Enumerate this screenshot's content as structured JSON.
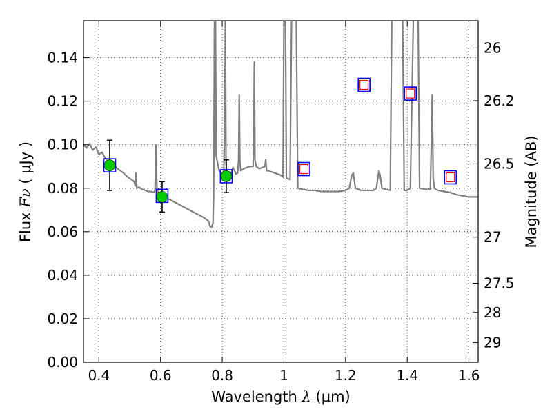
{
  "chart_data": {
    "type": "line",
    "xlabel_text": "Wavelength",
    "xlabel_symbol": "λ",
    "xlabel_unit": "(μm)",
    "ylabel_text": "Flux",
    "ylabel_symbol": "Fν",
    "ylabel_unit": "( μJy )",
    "y2label": "Magnitude (AB)",
    "xlim": [
      0.35,
      1.63
    ],
    "ylim": [
      0.0,
      0.157
    ],
    "grid": true,
    "x_ticks": [
      0.4,
      0.6,
      0.8,
      1.0,
      1.2,
      1.4,
      1.6
    ],
    "x_tick_labels": [
      "0.4",
      "0.6",
      "0.8",
      "1",
      "1.2",
      "1.4",
      "1.6"
    ],
    "y_ticks": [
      0.0,
      0.02,
      0.04,
      0.06,
      0.08,
      0.1,
      0.12,
      0.14
    ],
    "y_tick_labels": [
      "0.00",
      "0.02",
      "0.04",
      "0.06",
      "0.08",
      "0.10",
      "0.12",
      "0.14"
    ],
    "y2_ticks": [
      {
        "flux": 0.1445,
        "label": "26"
      },
      {
        "flux": 0.1202,
        "label": "26.2"
      },
      {
        "flux": 0.0912,
        "label": "26.5"
      },
      {
        "flux": 0.0575,
        "label": "27"
      },
      {
        "flux": 0.0363,
        "label": "27.5"
      },
      {
        "flux": 0.0229,
        "label": "28"
      },
      {
        "flux": 0.0091,
        "label": "29"
      }
    ],
    "series": [
      {
        "kind": "sed_model",
        "color": "#808080",
        "points": [
          [
            0.35,
            0.1
          ],
          [
            0.36,
            0.0985
          ],
          [
            0.37,
            0.1005
          ],
          [
            0.38,
            0.0975
          ],
          [
            0.39,
            0.099
          ],
          [
            0.4,
            0.0955
          ],
          [
            0.41,
            0.0965
          ],
          [
            0.42,
            0.094
          ],
          [
            0.43,
            0.0925
          ],
          [
            0.44,
            0.0915
          ],
          [
            0.45,
            0.0905
          ],
          [
            0.46,
            0.089
          ],
          [
            0.47,
            0.088
          ],
          [
            0.48,
            0.087
          ],
          [
            0.49,
            0.0855
          ],
          [
            0.5,
            0.0845
          ],
          [
            0.51,
            0.0835
          ],
          [
            0.515,
            0.0828
          ],
          [
            0.518,
            0.081
          ],
          [
            0.52,
            0.087
          ],
          [
            0.523,
            0.08
          ],
          [
            0.53,
            0.0805
          ],
          [
            0.54,
            0.0795
          ],
          [
            0.55,
            0.079
          ],
          [
            0.56,
            0.0785
          ],
          [
            0.57,
            0.0785
          ],
          [
            0.578,
            0.078
          ],
          [
            0.582,
            0.079
          ],
          [
            0.585,
            0.1
          ],
          [
            0.588,
            0.08
          ],
          [
            0.592,
            0.0782
          ],
          [
            0.6,
            0.0775
          ],
          [
            0.61,
            0.0765
          ],
          [
            0.62,
            0.0755
          ],
          [
            0.64,
            0.074
          ],
          [
            0.66,
            0.0725
          ],
          [
            0.68,
            0.071
          ],
          [
            0.7,
            0.0695
          ],
          [
            0.72,
            0.068
          ],
          [
            0.74,
            0.0665
          ],
          [
            0.755,
            0.065
          ],
          [
            0.76,
            0.0625
          ],
          [
            0.765,
            0.062
          ],
          [
            0.77,
            0.064
          ],
          [
            0.772,
            0.076
          ],
          [
            0.775,
            0.16
          ],
          [
            0.778,
            0.16
          ],
          [
            0.78,
            0.095
          ],
          [
            0.79,
            0.088
          ],
          [
            0.8,
            0.086
          ],
          [
            0.805,
            0.088
          ],
          [
            0.808,
            0.11
          ],
          [
            0.81,
            0.16
          ],
          [
            0.812,
            0.092
          ],
          [
            0.815,
            0.086
          ],
          [
            0.82,
            0.085
          ],
          [
            0.83,
            0.0875
          ],
          [
            0.835,
            0.0895
          ],
          [
            0.84,
            0.088
          ],
          [
            0.845,
            0.0865
          ],
          [
            0.85,
            0.087
          ],
          [
            0.853,
            0.093
          ],
          [
            0.855,
            0.123
          ],
          [
            0.857,
            0.093
          ],
          [
            0.86,
            0.088
          ],
          [
            0.87,
            0.089
          ],
          [
            0.88,
            0.0895
          ],
          [
            0.89,
            0.09
          ],
          [
            0.9,
            0.09
          ],
          [
            0.902,
            0.1
          ],
          [
            0.904,
            0.138
          ],
          [
            0.906,
            0.093
          ],
          [
            0.91,
            0.09
          ],
          [
            0.92,
            0.089
          ],
          [
            0.93,
            0.0895
          ],
          [
            0.938,
            0.09
          ],
          [
            0.941,
            0.093
          ],
          [
            0.944,
            0.088
          ],
          [
            0.95,
            0.088
          ],
          [
            0.96,
            0.0875
          ],
          [
            0.97,
            0.087
          ],
          [
            0.98,
            0.0865
          ],
          [
            0.99,
            0.086
          ],
          [
            0.997,
            0.085
          ],
          [
            1.0,
            0.16
          ],
          [
            1.005,
            0.16
          ],
          [
            1.008,
            0.085
          ],
          [
            1.01,
            0.0845
          ],
          [
            1.02,
            0.084
          ],
          [
            1.025,
            0.16
          ],
          [
            1.04,
            0.16
          ],
          [
            1.045,
            0.08
          ],
          [
            1.06,
            0.0795
          ],
          [
            1.08,
            0.079
          ],
          [
            1.1,
            0.079
          ],
          [
            1.12,
            0.0785
          ],
          [
            1.14,
            0.0785
          ],
          [
            1.16,
            0.0785
          ],
          [
            1.18,
            0.0785
          ],
          [
            1.2,
            0.079
          ],
          [
            1.212,
            0.08
          ],
          [
            1.22,
            0.086
          ],
          [
            1.225,
            0.087
          ],
          [
            1.232,
            0.08
          ],
          [
            1.25,
            0.079
          ],
          [
            1.27,
            0.079
          ],
          [
            1.29,
            0.079
          ],
          [
            1.3,
            0.08
          ],
          [
            1.308,
            0.088
          ],
          [
            1.312,
            0.086
          ],
          [
            1.318,
            0.08
          ],
          [
            1.33,
            0.0795
          ],
          [
            1.345,
            0.079
          ],
          [
            1.35,
            0.16
          ],
          [
            1.385,
            0.16
          ],
          [
            1.39,
            0.079
          ],
          [
            1.4,
            0.079
          ],
          [
            1.41,
            0.08
          ],
          [
            1.42,
            0.16
          ],
          [
            1.435,
            0.16
          ],
          [
            1.44,
            0.08
          ],
          [
            1.46,
            0.0795
          ],
          [
            1.475,
            0.0795
          ],
          [
            1.478,
            0.1
          ],
          [
            1.481,
            0.123
          ],
          [
            1.484,
            0.085
          ],
          [
            1.488,
            0.08
          ],
          [
            1.5,
            0.079
          ],
          [
            1.52,
            0.0785
          ],
          [
            1.54,
            0.078
          ],
          [
            1.56,
            0.077
          ],
          [
            1.58,
            0.0765
          ],
          [
            1.6,
            0.076
          ],
          [
            1.63,
            0.076
          ]
        ]
      },
      {
        "kind": "model_photometry",
        "marker": "square",
        "edge": "#0000ff",
        "points": [
          [
            0.435,
            0.0905
          ],
          [
            0.605,
            0.0765
          ],
          [
            0.813,
            0.0855
          ],
          [
            1.065,
            0.0888
          ],
          [
            1.26,
            0.1275
          ],
          [
            1.41,
            0.1235
          ],
          [
            1.54,
            0.085
          ]
        ]
      },
      {
        "kind": "upper_limits",
        "marker": "square-open",
        "edge": "#ff0000",
        "points": [
          [
            1.065,
            0.0888
          ],
          [
            1.26,
            0.1275
          ],
          [
            1.41,
            0.1235
          ],
          [
            1.54,
            0.085
          ]
        ]
      },
      {
        "kind": "observed",
        "marker": "circle",
        "fill": "#00cc00",
        "points": [
          {
            "x": 0.435,
            "y": 0.0905,
            "err": 0.0115
          },
          {
            "x": 0.605,
            "y": 0.076,
            "err": 0.007
          },
          {
            "x": 0.813,
            "y": 0.0855,
            "err": 0.0075
          }
        ]
      }
    ]
  }
}
